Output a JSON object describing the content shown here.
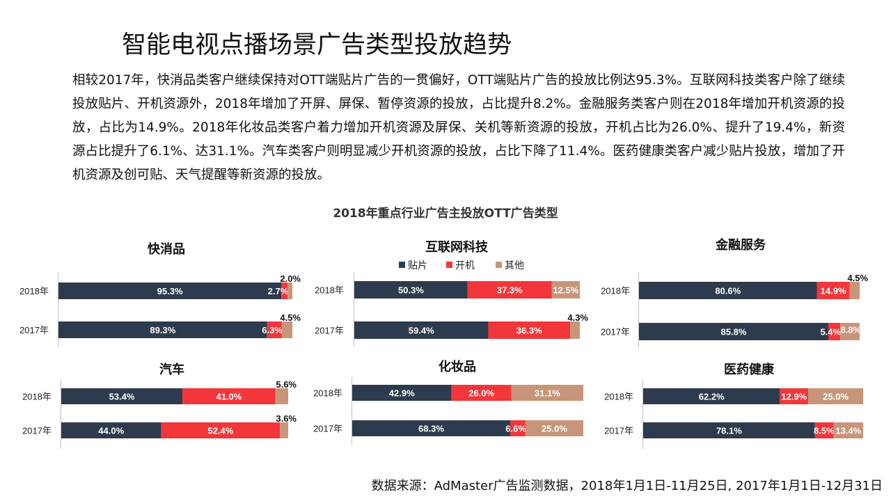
{
  "title": "智能电视点播场景广告类型投放趋势",
  "summary": "相较2017年，快消品类客户继续保持对OTT端贴片广告的一贯偏好，OTT端贴片广告的投放比例达95.3%。互联网科技类客户除了继续投放贴片、开机资源外，2018年增加了开屏、屏保、暂停资源的投放，占比提升8.2%。金融服务类客户则在2018年增加开机资源的投放，占比为14.9%。2018年化妆品类客户着力增加开机资源及屏保、关机等新资源的投放，开机占比为26.0%、提升了19.4%，新资源占比提升了6.1%、达31.1%。汽车类客户则明显减少开机资源的投放，占比下降了11.4%。医药健康类客户减少贴片投放，增加了开机资源及创可贴、天气提醒等新资源的投放。",
  "chart_title": "2018年重点行业广告主投放OTT广告类型",
  "legend": [
    {
      "name": "贴片",
      "color": "#2E3B4E"
    },
    {
      "name": "开机",
      "color": "#F2363A"
    },
    {
      "name": "其他",
      "color": "#C8957A"
    }
  ],
  "source": "数据来源：AdMaster广告监测数据，2018年1月1日-11月25日, 2017年1月1日-12月31日",
  "chart_data": [
    {
      "type": "bar",
      "stacked": "100%",
      "orientation": "horizontal",
      "title": "快消品",
      "categories": [
        "2018年",
        "2017年"
      ],
      "series": [
        {
          "name": "贴片",
          "values": [
            95.3,
            89.3
          ]
        },
        {
          "name": "开机",
          "values": [
            2.7,
            6.3
          ]
        },
        {
          "name": "其他",
          "values": [
            2.0,
            4.5
          ]
        }
      ]
    },
    {
      "type": "bar",
      "stacked": "100%",
      "orientation": "horizontal",
      "title": "互联网科技",
      "categories": [
        "2018年",
        "2017年"
      ],
      "series": [
        {
          "name": "贴片",
          "values": [
            50.3,
            59.4
          ]
        },
        {
          "name": "开机",
          "values": [
            37.3,
            36.3
          ]
        },
        {
          "name": "其他",
          "values": [
            12.5,
            4.3
          ]
        }
      ]
    },
    {
      "type": "bar",
      "stacked": "100%",
      "orientation": "horizontal",
      "title": "金融服务",
      "categories": [
        "2018年",
        "2017年"
      ],
      "series": [
        {
          "name": "贴片",
          "values": [
            80.6,
            85.8
          ]
        },
        {
          "name": "开机",
          "values": [
            14.9,
            5.4
          ]
        },
        {
          "name": "其他",
          "values": [
            4.5,
            8.8
          ]
        }
      ]
    },
    {
      "type": "bar",
      "stacked": "100%",
      "orientation": "horizontal",
      "title": "汽车",
      "categories": [
        "2018年",
        "2017年"
      ],
      "series": [
        {
          "name": "贴片",
          "values": [
            53.4,
            44.0
          ]
        },
        {
          "name": "开机",
          "values": [
            41.0,
            52.4
          ]
        },
        {
          "name": "其他",
          "values": [
            5.6,
            3.6
          ]
        }
      ]
    },
    {
      "type": "bar",
      "stacked": "100%",
      "orientation": "horizontal",
      "title": "化妆品",
      "categories": [
        "2018年",
        "2017年"
      ],
      "series": [
        {
          "name": "贴片",
          "values": [
            42.9,
            68.3
          ]
        },
        {
          "name": "开机",
          "values": [
            26.0,
            6.6
          ]
        },
        {
          "name": "其他",
          "values": [
            31.1,
            25.0
          ]
        }
      ]
    },
    {
      "type": "bar",
      "stacked": "100%",
      "orientation": "horizontal",
      "title": "医药健康",
      "categories": [
        "2018年",
        "2017年"
      ],
      "series": [
        {
          "name": "贴片",
          "values": [
            62.2,
            78.1
          ]
        },
        {
          "name": "开机",
          "values": [
            12.9,
            8.5
          ]
        },
        {
          "name": "其他",
          "values": [
            25.0,
            13.4
          ]
        }
      ]
    }
  ]
}
